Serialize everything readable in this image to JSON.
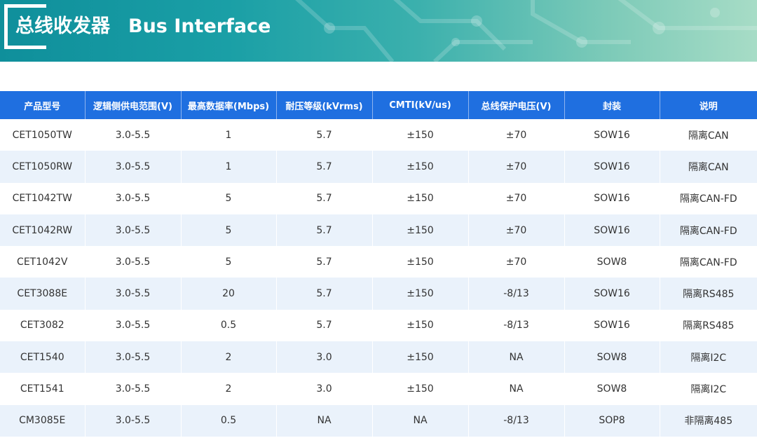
{
  "banner": {
    "title_cn": "总线收发器",
    "title_en": "Bus Interface"
  },
  "colors": {
    "header_bg": "#1f6fe0",
    "row_alt_bg": "#eaf2fb",
    "banner_start": "#0f8f9b",
    "banner_end": "#a7dcc6"
  },
  "table": {
    "headers": [
      "产品型号",
      "逻辑侧供电范围(V)",
      "最高数据率(Mbps)",
      "耐压等级(kVrms)",
      "CMTI(kV/us)",
      "总线保护电压(V)",
      "封装",
      "说明"
    ],
    "rows": [
      [
        "CET1050TW",
        "3.0-5.5",
        "1",
        "5.7",
        "±150",
        "±70",
        "SOW16",
        "隔离CAN"
      ],
      [
        "CET1050RW",
        "3.0-5.5",
        "1",
        "5.7",
        "±150",
        "±70",
        "SOW16",
        "隔离CAN"
      ],
      [
        "CET1042TW",
        "3.0-5.5",
        "5",
        "5.7",
        "±150",
        "±70",
        "SOW16",
        "隔离CAN-FD"
      ],
      [
        "CET1042RW",
        "3.0-5.5",
        "5",
        "5.7",
        "±150",
        "±70",
        "SOW16",
        "隔离CAN-FD"
      ],
      [
        "CET1042V",
        "3.0-5.5",
        "5",
        "5.7",
        "±150",
        "±70",
        "SOW8",
        "隔离CAN-FD"
      ],
      [
        "CET3088E",
        "3.0-5.5",
        "20",
        "5.7",
        "±150",
        "-8/13",
        "SOW16",
        "隔离RS485"
      ],
      [
        "CET3082",
        "3.0-5.5",
        "0.5",
        "5.7",
        "±150",
        "-8/13",
        "SOW16",
        "隔离RS485"
      ],
      [
        "CET1540",
        "3.0-5.5",
        "2",
        "3.0",
        "±150",
        "NA",
        "SOW8",
        "隔离I2C"
      ],
      [
        "CET1541",
        "3.0-5.5",
        "2",
        "3.0",
        "±150",
        "NA",
        "SOW8",
        "隔离I2C"
      ],
      [
        "CM3085E",
        "3.0-5.5",
        "0.5",
        "NA",
        "NA",
        "-8/13",
        "SOP8",
        "非隔离485"
      ]
    ]
  }
}
